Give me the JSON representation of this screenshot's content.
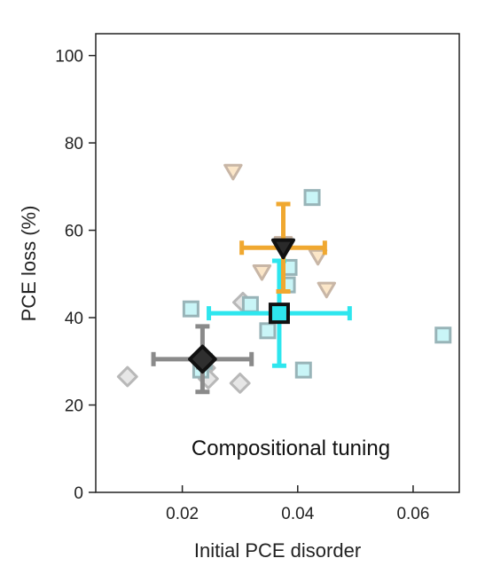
{
  "chart_data": {
    "type": "scatter",
    "title": "",
    "xlabel": "Initial PCE disorder",
    "ylabel": "PCE loss (%)",
    "xlim": [
      0.005,
      0.068
    ],
    "ylim": [
      0,
      105
    ],
    "x_ticks": [
      0.02,
      0.04,
      0.06
    ],
    "x_tick_labels": [
      "0.02",
      "0.04",
      "0.06"
    ],
    "y_ticks": [
      0,
      20,
      40,
      60,
      80,
      100
    ],
    "y_tick_labels": [
      "0",
      "20",
      "40",
      "60",
      "80",
      "100"
    ],
    "grid": false,
    "annotation": "Compositional tuning",
    "series": [
      {
        "marker": "diamond",
        "color": "#8a8a8a",
        "points": [
          {
            "x": 0.0105,
            "y": 26.5
          },
          {
            "x": 0.0235,
            "y": 29.5
          },
          {
            "x": 0.024,
            "y": 28.5
          },
          {
            "x": 0.0245,
            "y": 26.0
          },
          {
            "x": 0.03,
            "y": 25.0
          },
          {
            "x": 0.0305,
            "y": 43.5
          }
        ],
        "mean": {
          "x": 0.0235,
          "y": 30.5,
          "x_err": 0.0085,
          "y_err": 7.5
        }
      },
      {
        "marker": "square",
        "color": "#2ee6ee",
        "points": [
          {
            "x": 0.0215,
            "y": 42.0
          },
          {
            "x": 0.0232,
            "y": 28.0
          },
          {
            "x": 0.0238,
            "y": 30.0
          },
          {
            "x": 0.0318,
            "y": 43.0
          },
          {
            "x": 0.0348,
            "y": 37.0
          },
          {
            "x": 0.0382,
            "y": 47.5
          },
          {
            "x": 0.0385,
            "y": 51.5
          },
          {
            "x": 0.041,
            "y": 28.0
          },
          {
            "x": 0.0425,
            "y": 67.5
          },
          {
            "x": 0.0652,
            "y": 36.0
          }
        ],
        "mean": {
          "x": 0.0368,
          "y": 41.0,
          "x_err": 0.0122,
          "y_err": 12.0
        }
      },
      {
        "marker": "triangle-down",
        "color": "#f0a830",
        "points": [
          {
            "x": 0.0288,
            "y": 73.5
          },
          {
            "x": 0.0338,
            "y": 50.5
          },
          {
            "x": 0.0375,
            "y": 57.0
          },
          {
            "x": 0.0435,
            "y": 54.0
          },
          {
            "x": 0.045,
            "y": 46.5
          }
        ],
        "mean": {
          "x": 0.0375,
          "y": 56.0,
          "x_err": 0.0072,
          "y_err": 10.0
        }
      }
    ]
  }
}
